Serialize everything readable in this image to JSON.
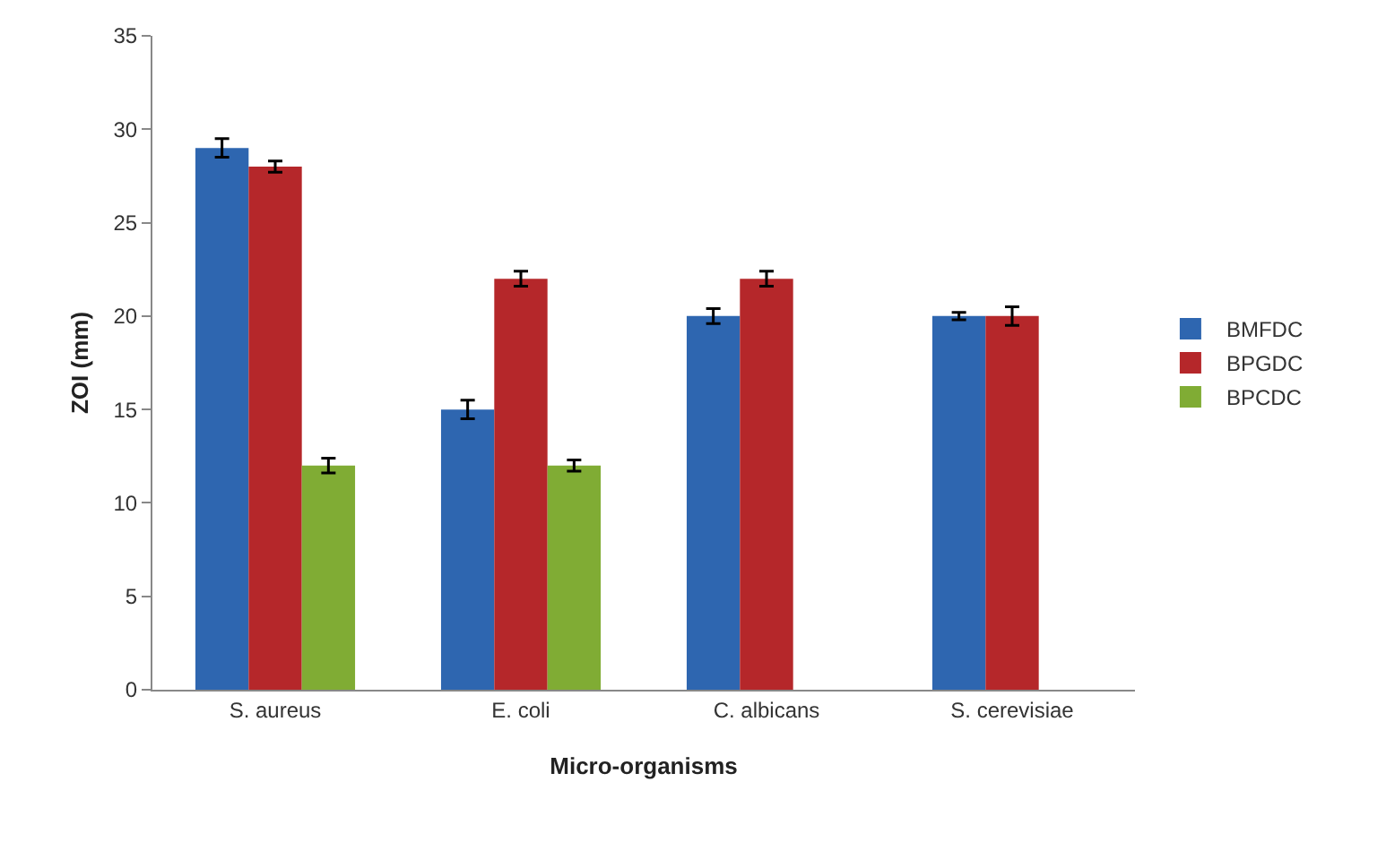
{
  "chart_data": {
    "type": "bar",
    "xlabel": "Micro-organisms",
    "ylabel": "ZOI (mm)",
    "categories": [
      "S. aureus",
      "E. coli",
      "C. albicans",
      "S. cerevisiae"
    ],
    "series": [
      {
        "name": "BMFDC",
        "color": "#2e66b0",
        "values": [
          29,
          15,
          20,
          20
        ],
        "errors": [
          0.5,
          0.5,
          0.4,
          0.2
        ]
      },
      {
        "name": "BPGDC",
        "color": "#b5272a",
        "values": [
          28,
          22,
          22,
          20
        ],
        "errors": [
          0.3,
          0.4,
          0.4,
          0.5
        ]
      },
      {
        "name": "BPCDC",
        "color": "#80ac34",
        "values": [
          12,
          12,
          null,
          null
        ],
        "errors": [
          0.4,
          0.3,
          null,
          null
        ]
      }
    ],
    "ylim": [
      0,
      35
    ],
    "yticks": [
      0,
      5,
      10,
      15,
      20,
      25,
      30,
      35
    ],
    "grid": false,
    "legend": "right"
  }
}
